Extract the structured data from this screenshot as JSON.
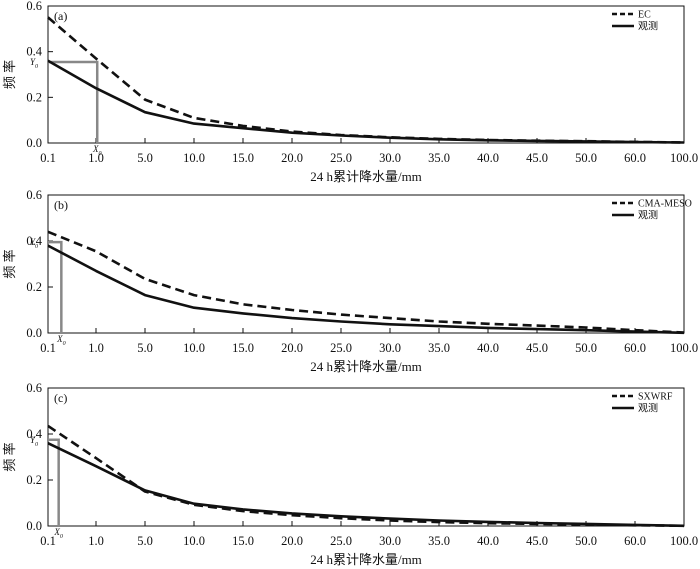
{
  "chart_data": [
    {
      "type": "line",
      "panel_label": "(a)",
      "xlabel": "24 h累计降水量/mm",
      "ylabel": "频 率",
      "ylim": [
        0,
        0.6
      ],
      "yticks": [
        "0.0",
        "0.2",
        "0.4",
        "0.6"
      ],
      "categories": [
        "0.1",
        "1.0",
        "5.0",
        "10.0",
        "15.0",
        "20.0",
        "25.0",
        "30.0",
        "35.0",
        "40.0",
        "45.0",
        "50.0",
        "60.0",
        "100.0"
      ],
      "series": [
        {
          "name": "EC",
          "style": "dashed",
          "values": [
            0.55,
            0.37,
            0.19,
            0.11,
            0.075,
            0.05,
            0.035,
            0.025,
            0.018,
            0.013,
            0.01,
            0.008,
            0.005,
            0.002
          ]
        },
        {
          "name": "观测",
          "style": "solid",
          "values": [
            0.36,
            0.24,
            0.135,
            0.085,
            0.065,
            0.045,
            0.033,
            0.023,
            0.016,
            0.012,
            0.009,
            0.007,
            0.004,
            0.002
          ]
        }
      ],
      "annotation": {
        "x_label": "X",
        "x_sub": "0",
        "y_label": "Y",
        "y_sub": "0",
        "x_value": 1.1,
        "y_value": 0.355
      },
      "legend_position": "top-right",
      "grid": false
    },
    {
      "type": "line",
      "panel_label": "(b)",
      "xlabel": "24 h累计降水量/mm",
      "ylabel": "频 率",
      "ylim": [
        0,
        0.6
      ],
      "yticks": [
        "0.0",
        "0.2",
        "0.4",
        "0.6"
      ],
      "categories": [
        "0.1",
        "1.0",
        "5.0",
        "10.0",
        "15.0",
        "20.0",
        "25.0",
        "30.0",
        "35.0",
        "40.0",
        "45.0",
        "50.0",
        "60.0",
        "100.0"
      ],
      "series": [
        {
          "name": "CMA-MESO",
          "style": "dashed",
          "values": [
            0.44,
            0.355,
            0.235,
            0.165,
            0.125,
            0.1,
            0.08,
            0.065,
            0.05,
            0.04,
            0.032,
            0.024,
            0.012,
            0.002
          ]
        },
        {
          "name": "观测",
          "style": "solid",
          "values": [
            0.38,
            0.27,
            0.165,
            0.11,
            0.085,
            0.065,
            0.05,
            0.038,
            0.03,
            0.022,
            0.017,
            0.012,
            0.006,
            0.001
          ]
        }
      ],
      "annotation": {
        "x_label": "X",
        "x_sub": "0",
        "y_label": "Y",
        "y_sub": "0",
        "x_value": 0.35,
        "y_value": 0.395
      },
      "legend_position": "top-right",
      "grid": false
    },
    {
      "type": "line",
      "panel_label": "(c)",
      "xlabel": "24 h累计降水量/mm",
      "ylabel": "频 率",
      "ylim": [
        0,
        0.6
      ],
      "yticks": [
        "0.0",
        "0.2",
        "0.4",
        "0.6"
      ],
      "categories": [
        "0.1",
        "1.0",
        "5.0",
        "10.0",
        "15.0",
        "20.0",
        "25.0",
        "30.0",
        "35.0",
        "40.0",
        "45.0",
        "50.0",
        "60.0",
        "100.0"
      ],
      "series": [
        {
          "name": "SXWRF",
          "style": "dashed",
          "values": [
            0.435,
            0.295,
            0.15,
            0.092,
            0.065,
            0.047,
            0.034,
            0.024,
            0.017,
            0.012,
            0.009,
            0.006,
            0.003,
            0.001
          ]
        },
        {
          "name": "观测",
          "style": "solid",
          "values": [
            0.36,
            0.26,
            0.155,
            0.097,
            0.072,
            0.055,
            0.042,
            0.032,
            0.024,
            0.018,
            0.013,
            0.009,
            0.005,
            0.001
          ]
        }
      ],
      "annotation": {
        "x_label": "X",
        "x_sub": "0",
        "y_label": "Y",
        "y_sub": "0",
        "x_value": 0.3,
        "y_value": 0.375
      },
      "legend_position": "top-right",
      "grid": false
    }
  ]
}
